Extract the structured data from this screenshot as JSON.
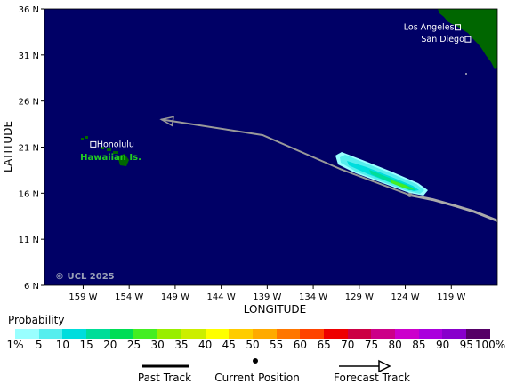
{
  "map": {
    "credit": "© UCL 2025",
    "x_axis_title": "LONGITUDE",
    "y_axis_title": "LATITUDE",
    "lon_ticks": [
      {
        "lon": 159,
        "label": "159 W"
      },
      {
        "lon": 154,
        "label": "154 W"
      },
      {
        "lon": 149,
        "label": "149 W"
      },
      {
        "lon": 144,
        "label": "144 W"
      },
      {
        "lon": 139,
        "label": "139 W"
      },
      {
        "lon": 134,
        "label": "134 W"
      },
      {
        "lon": 129,
        "label": "129 W"
      },
      {
        "lon": 124,
        "label": "124 W"
      },
      {
        "lon": 119,
        "label": "119 W"
      }
    ],
    "lat_ticks": [
      {
        "lat": 36,
        "label": "36 N"
      },
      {
        "lat": 31,
        "label": "31 N"
      },
      {
        "lat": 26,
        "label": "26 N"
      },
      {
        "lat": 21,
        "label": "21 N"
      },
      {
        "lat": 16,
        "label": "16 N"
      },
      {
        "lat": 11,
        "label": "11 N"
      },
      {
        "lat": 6,
        "label": "6 N"
      }
    ],
    "extent": {
      "lon_west": 163.2,
      "lon_east": 114.0,
      "lat_south": 6,
      "lat_north": 36
    },
    "places": [
      {
        "name": "Honolulu",
        "lon": 157.9,
        "lat": 21.3
      },
      {
        "name": "Los Angeles",
        "lon": 118.3,
        "lat": 34.0
      },
      {
        "name": "San Diego",
        "lon": 117.2,
        "lat": 32.7
      }
    ],
    "region_label": {
      "text": "Hawaiian Is.",
      "lon": 156.0,
      "lat": 19.6
    },
    "past_track": [
      {
        "lon": 113.5,
        "lat": 12.8
      },
      {
        "lon": 115.0,
        "lat": 13.4
      },
      {
        "lon": 116.5,
        "lat": 14.0
      },
      {
        "lon": 118.5,
        "lat": 14.6
      },
      {
        "lon": 121.0,
        "lat": 15.3
      },
      {
        "lon": 123.5,
        "lat": 15.8
      }
    ],
    "current_position": {
      "lon": 123.5,
      "lat": 15.8
    },
    "forecast_track": [
      {
        "lon": 123.5,
        "lat": 15.8
      },
      {
        "lon": 131.0,
        "lat": 18.6
      },
      {
        "lon": 139.5,
        "lat": 22.3
      },
      {
        "lon": 150.5,
        "lat": 24.0
      }
    ],
    "colors": {
      "ocean": "#000066",
      "land": "#006600",
      "past_track": "#aaaaaa",
      "forecast_track": "#999999"
    }
  },
  "legend": {
    "title": "Probability",
    "bins": [
      {
        "label": "1%",
        "color": "#99ffff"
      },
      {
        "label": "5",
        "color": "#55eeee"
      },
      {
        "label": "10",
        "color": "#00dddd"
      },
      {
        "label": "15",
        "color": "#00dd99"
      },
      {
        "label": "20",
        "color": "#00dd55"
      },
      {
        "label": "25",
        "color": "#44ee22"
      },
      {
        "label": "30",
        "color": "#99ee00"
      },
      {
        "label": "35",
        "color": "#ccee00"
      },
      {
        "label": "40",
        "color": "#ffff00"
      },
      {
        "label": "45",
        "color": "#ffcc00"
      },
      {
        "label": "50",
        "color": "#ffaa00"
      },
      {
        "label": "55",
        "color": "#ff7700"
      },
      {
        "label": "60",
        "color": "#ff4400"
      },
      {
        "label": "65",
        "color": "#ee0000"
      },
      {
        "label": "70",
        "color": "#cc0044"
      },
      {
        "label": "75",
        "color": "#cc0088"
      },
      {
        "label": "80",
        "color": "#cc00cc"
      },
      {
        "label": "85",
        "color": "#aa00dd"
      },
      {
        "label": "90",
        "color": "#8800cc"
      },
      {
        "label": "95",
        "color": "#6600aa"
      },
      {
        "label": "100%",
        "color": "#550066"
      }
    ]
  },
  "track_legend": {
    "past": "Past Track",
    "current": "Current Position",
    "forecast": "Forecast Track"
  }
}
